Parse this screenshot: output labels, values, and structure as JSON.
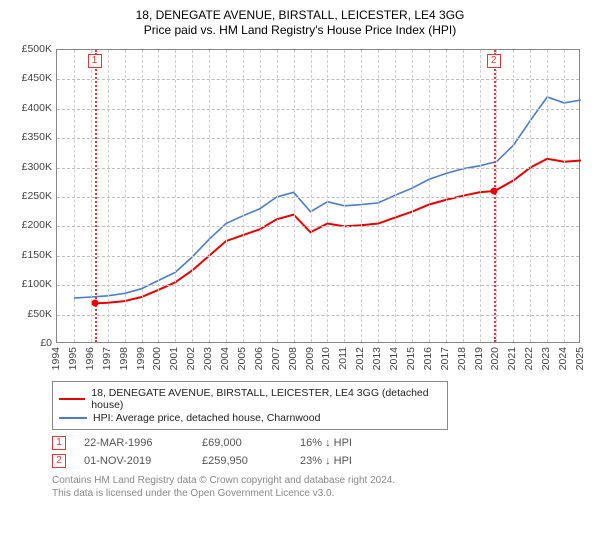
{
  "title1": "18, DENEGATE AVENUE, BIRSTALL, LEICESTER, LE4 3GG",
  "title2": "Price paid vs. HM Land Registry's House Price Index (HPI)",
  "chart": {
    "type": "line",
    "background_color": "#ffffff",
    "grid_color": "#cccccc",
    "border_color": "#888888",
    "ylim": [
      0,
      500000
    ],
    "ytick_step": 50000,
    "y_axis": {
      "ticks": [
        0,
        50000,
        100000,
        150000,
        200000,
        250000,
        300000,
        350000,
        400000,
        450000,
        500000
      ],
      "labels": [
        "£0",
        "£50K",
        "£100K",
        "£150K",
        "£200K",
        "£250K",
        "£300K",
        "£350K",
        "£400K",
        "£450K",
        "£500K"
      ]
    },
    "x_axis": {
      "years": [
        1994,
        1995,
        1996,
        1997,
        1998,
        1999,
        2000,
        2001,
        2002,
        2003,
        2004,
        2005,
        2006,
        2007,
        2008,
        2009,
        2010,
        2011,
        2012,
        2013,
        2014,
        2015,
        2016,
        2017,
        2018,
        2019,
        2020,
        2021,
        2022,
        2023,
        2024,
        2025
      ]
    },
    "series": [
      {
        "name": "18, DENEGATE AVENUE, BIRSTALL, LEICESTER, LE4 3GG (detached house)",
        "color": "#e60000",
        "line_width": 2,
        "data": [
          [
            1996.2,
            69000
          ],
          [
            1997,
            70000
          ],
          [
            1998,
            73000
          ],
          [
            1999,
            80000
          ],
          [
            2000,
            92000
          ],
          [
            2001,
            105000
          ],
          [
            2002,
            125000
          ],
          [
            2003,
            150000
          ],
          [
            2004,
            175000
          ],
          [
            2005,
            185000
          ],
          [
            2006,
            195000
          ],
          [
            2007,
            212000
          ],
          [
            2008,
            220000
          ],
          [
            2009,
            190000
          ],
          [
            2010,
            205000
          ],
          [
            2011,
            200000
          ],
          [
            2012,
            202000
          ],
          [
            2013,
            205000
          ],
          [
            2014,
            215000
          ],
          [
            2015,
            225000
          ],
          [
            2016,
            237000
          ],
          [
            2017,
            245000
          ],
          [
            2018,
            252000
          ],
          [
            2019,
            258000
          ],
          [
            2019.8,
            259950
          ],
          [
            2020,
            262000
          ],
          [
            2021,
            278000
          ],
          [
            2022,
            300000
          ],
          [
            2023,
            315000
          ],
          [
            2024,
            310000
          ],
          [
            2025,
            312000
          ]
        ]
      },
      {
        "name": "HPI: Average price, detached house, Charnwood",
        "color": "#4a7dc9",
        "line_width": 1.6,
        "data": [
          [
            1995,
            78000
          ],
          [
            1996,
            80000
          ],
          [
            1997,
            82000
          ],
          [
            1998,
            86000
          ],
          [
            1999,
            94000
          ],
          [
            2000,
            108000
          ],
          [
            2001,
            122000
          ],
          [
            2002,
            148000
          ],
          [
            2003,
            178000
          ],
          [
            2004,
            205000
          ],
          [
            2005,
            218000
          ],
          [
            2006,
            230000
          ],
          [
            2007,
            250000
          ],
          [
            2008,
            258000
          ],
          [
            2009,
            225000
          ],
          [
            2010,
            242000
          ],
          [
            2011,
            235000
          ],
          [
            2012,
            237000
          ],
          [
            2013,
            240000
          ],
          [
            2014,
            253000
          ],
          [
            2015,
            265000
          ],
          [
            2016,
            280000
          ],
          [
            2017,
            290000
          ],
          [
            2018,
            298000
          ],
          [
            2019,
            303000
          ],
          [
            2020,
            310000
          ],
          [
            2021,
            338000
          ],
          [
            2022,
            380000
          ],
          [
            2023,
            420000
          ],
          [
            2024,
            410000
          ],
          [
            2025,
            415000
          ]
        ]
      }
    ],
    "markers": [
      {
        "id": "1",
        "date": "22-MAR-1996",
        "x": 1996.22,
        "price": "£69,000",
        "price_val": 69000,
        "diff": "16% ↓ HPI"
      },
      {
        "id": "2",
        "date": "01-NOV-2019",
        "x": 2019.83,
        "price": "£259,950",
        "price_val": 259950,
        "diff": "23% ↓ HPI"
      }
    ],
    "marker_style": {
      "line_color": "#e33333",
      "box_border": "#e33333",
      "dot_color": "#e60000"
    }
  },
  "footer": {
    "line1": "Contains HM Land Registry data © Crown copyright and database right 2024.",
    "line2": "This data is licensed under the Open Government Licence v3.0."
  }
}
